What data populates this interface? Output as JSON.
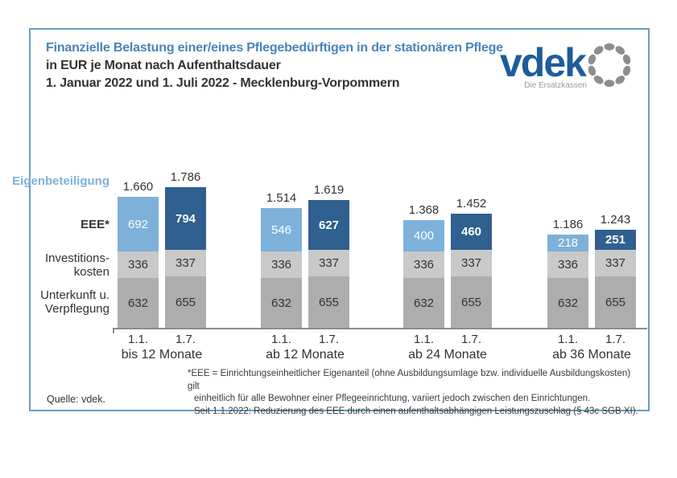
{
  "header": {
    "title_line1": "Finanzielle Belastung einer/eines Pflegebedürftigen in der stationären Pflege",
    "title_line2": "in EUR je Monat nach Aufenthaltsdauer",
    "title_line3": "1. Januar 2022 und 1. Juli 2022 - Mecklenburg-Vorpommern"
  },
  "logo": {
    "wordmark": "vdek",
    "tagline": "Die Ersatzkassen"
  },
  "row_labels": {
    "eigenbeteiligung": "Eigenbeteiligung",
    "eee": "EEE*",
    "investitionskosten_line1": "Investitions-",
    "investitionskosten_line2": "kosten",
    "unterkunft_line1": "Unterkunft u.",
    "unterkunft_line2": "Verpflegung"
  },
  "chart_data": {
    "type": "bar",
    "stacked": true,
    "title": "Finanzielle Belastung einer/eines Pflegebedürftigen in der stationären Pflege in EUR je Monat nach Aufenthaltsdauer, 1. Januar 2022 und 1. Juli 2022 - Mecklenburg-Vorpommern",
    "unit": "EUR je Monat",
    "legend_position": "left-row-labels",
    "grid": false,
    "series_order_bottom_to_top": [
      "unterkunft_verpflegung",
      "investitionskosten",
      "eee"
    ],
    "groups": [
      {
        "label": "bis 12 Monate",
        "bars": [
          {
            "date": "1.1.",
            "variant": "jan",
            "total": 1660,
            "total_label": "1.660",
            "eee": 692,
            "investitionskosten": 336,
            "unterkunft_verpflegung": 632
          },
          {
            "date": "1.7.",
            "variant": "jul",
            "total": 1786,
            "total_label": "1.786",
            "eee": 794,
            "investitionskosten": 337,
            "unterkunft_verpflegung": 655
          }
        ]
      },
      {
        "label": "ab 12 Monate",
        "bars": [
          {
            "date": "1.1.",
            "variant": "jan",
            "total": 1514,
            "total_label": "1.514",
            "eee": 546,
            "investitionskosten": 336,
            "unterkunft_verpflegung": 632
          },
          {
            "date": "1.7.",
            "variant": "jul",
            "total": 1619,
            "total_label": "1.619",
            "eee": 627,
            "investitionskosten": 337,
            "unterkunft_verpflegung": 655
          }
        ]
      },
      {
        "label": "ab 24 Monate",
        "bars": [
          {
            "date": "1.1.",
            "variant": "jan",
            "total": 1368,
            "total_label": "1.368",
            "eee": 400,
            "investitionskosten": 336,
            "unterkunft_verpflegung": 632
          },
          {
            "date": "1.7.",
            "variant": "jul",
            "total": 1452,
            "total_label": "1.452",
            "eee": 460,
            "investitionskosten": 337,
            "unterkunft_verpflegung": 655
          }
        ]
      },
      {
        "label": "ab 36 Monate",
        "bars": [
          {
            "date": "1.1.",
            "variant": "jan",
            "total": 1186,
            "total_label": "1.186",
            "eee": 218,
            "investitionskosten": 336,
            "unterkunft_verpflegung": 632
          },
          {
            "date": "1.7.",
            "variant": "jul",
            "total": 1243,
            "total_label": "1.243",
            "eee": 251,
            "investitionskosten": 337,
            "unterkunft_verpflegung": 655
          }
        ]
      }
    ],
    "colors": {
      "eee_jan": "#7EB1DA",
      "eee_jul": "#2F608F",
      "investitionskosten": "#C9C9C9",
      "unterkunft_verpflegung": "#ADADAD",
      "title_blue": "#4884BA",
      "frame_border": "#6C9CBC",
      "vdek_blue": "#1E5C9B",
      "logo_gray": "#8E8E8E"
    }
  },
  "footnotes": {
    "source": "Quelle: vdek.",
    "lines": [
      "*EEE = Einrichtungseinheitlicher Eigenanteil (ohne Ausbildungsumlage bzw. individuelle Ausbildungskosten) gilt",
      "einheitlich für alle Bewohner einer Pflegeeinrichtung, variiert jedoch zwischen den Einrichtungen.",
      "Seit 1.1.2022: Reduzierung des EEE durch einen aufenthaltsabhängigen Leistungszuschlag (§ 43c SGB XI)."
    ]
  }
}
